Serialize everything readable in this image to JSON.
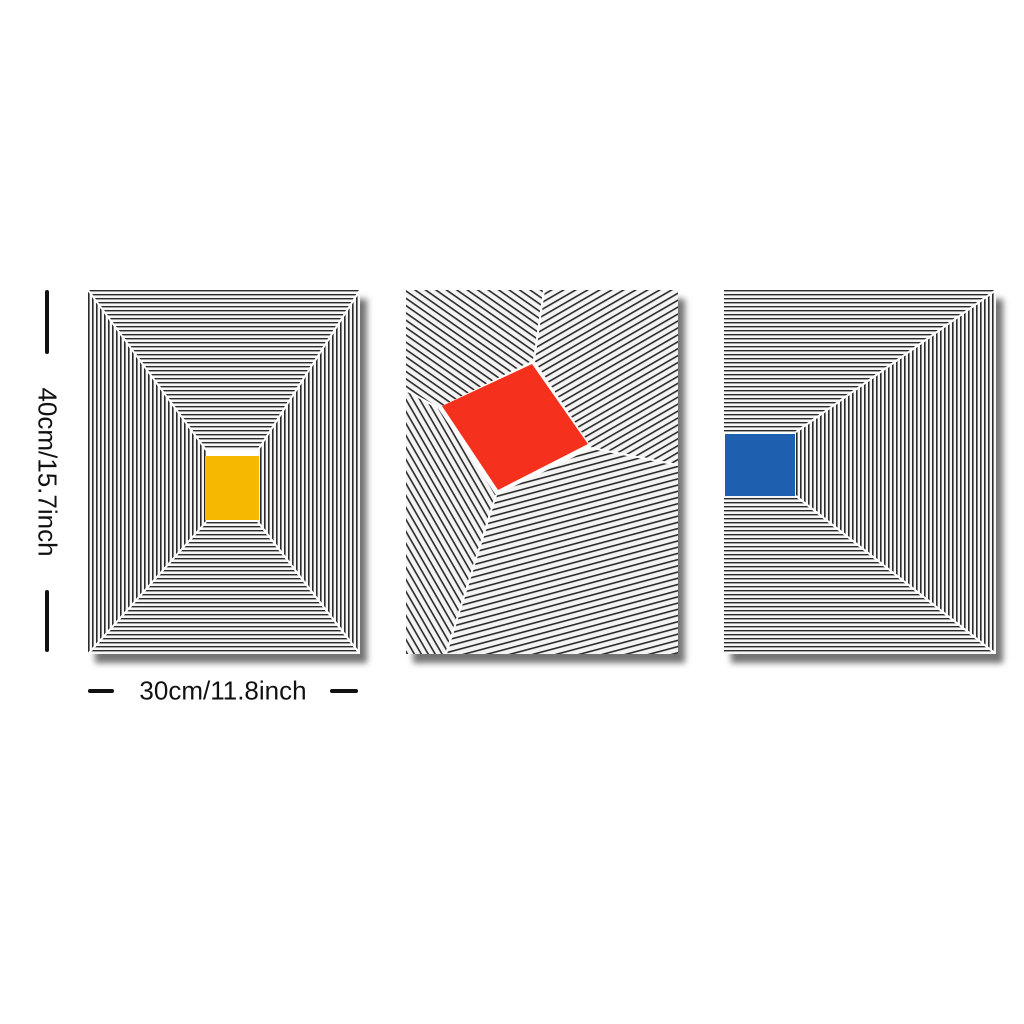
{
  "dimensions": {
    "height": "40cm/15.7inch",
    "width": "30cm/11.8inch"
  },
  "colors": {
    "background": "#ffffff",
    "line": "#222222",
    "panel_bg": "#f4f4f4",
    "yellow": "#f6b800",
    "red": "#f5301c",
    "blue": "#1f5fb0"
  },
  "panels": [
    {
      "accent": "yellow-square",
      "perspective": "corridor-center"
    },
    {
      "accent": "red-square",
      "perspective": "tilted-planes"
    },
    {
      "accent": "blue-square",
      "perspective": "corridor-left"
    }
  ]
}
